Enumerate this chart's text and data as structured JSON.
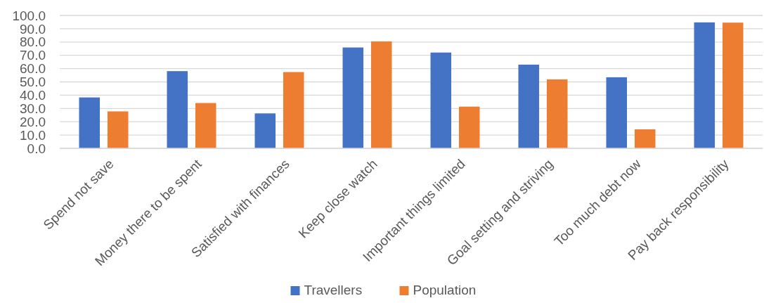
{
  "chart_data": {
    "type": "bar",
    "categories": [
      "Spend not save",
      "Money there to be spent",
      "Satisfied with finances",
      "Keep close watch",
      "Important things limited",
      "Goal setting and striving",
      "Too much debt now",
      "Pay back responsibility"
    ],
    "series": [
      {
        "name": "Travellers",
        "color": "#4472c4",
        "values": [
          38.3,
          58.1,
          26.3,
          75.9,
          72.1,
          63.0,
          53.5,
          94.8
        ]
      },
      {
        "name": "Population",
        "color": "#ed7d31",
        "values": [
          27.8,
          34.1,
          57.4,
          80.5,
          31.4,
          51.9,
          14.3,
          94.6
        ]
      }
    ],
    "ylim": [
      0,
      100
    ],
    "yticks": [
      {
        "value": 0,
        "label": "0.0"
      },
      {
        "value": 10,
        "label": "10.0"
      },
      {
        "value": 20,
        "label": "20.0"
      },
      {
        "value": 30,
        "label": "30.0"
      },
      {
        "value": 40,
        "label": "40.0"
      },
      {
        "value": 50,
        "label": "50.0"
      },
      {
        "value": 60,
        "label": "60.0"
      },
      {
        "value": 70,
        "label": "70.0"
      },
      {
        "value": 80,
        "label": "80.0"
      },
      {
        "value": 90,
        "label": "90.0"
      },
      {
        "value": 100,
        "label": "100.0"
      }
    ],
    "grid": "y",
    "legend": "bottom"
  }
}
